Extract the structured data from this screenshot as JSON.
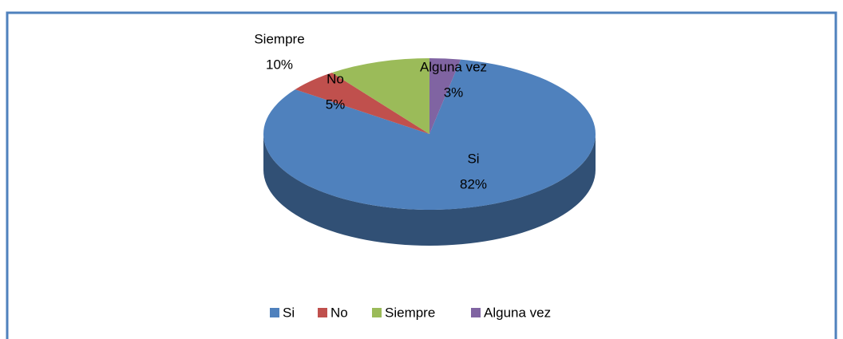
{
  "chart_data": {
    "type": "pie",
    "categories": [
      "Si",
      "No",
      "Siempre",
      "Alguna vez"
    ],
    "values": [
      82,
      5,
      10,
      3
    ],
    "value_labels": [
      "82%",
      "5%",
      "10%",
      "3%"
    ],
    "colors": [
      "#4f81bd",
      "#c0504d",
      "#9bbb59",
      "#8064a2"
    ],
    "legend": "bottom"
  }
}
